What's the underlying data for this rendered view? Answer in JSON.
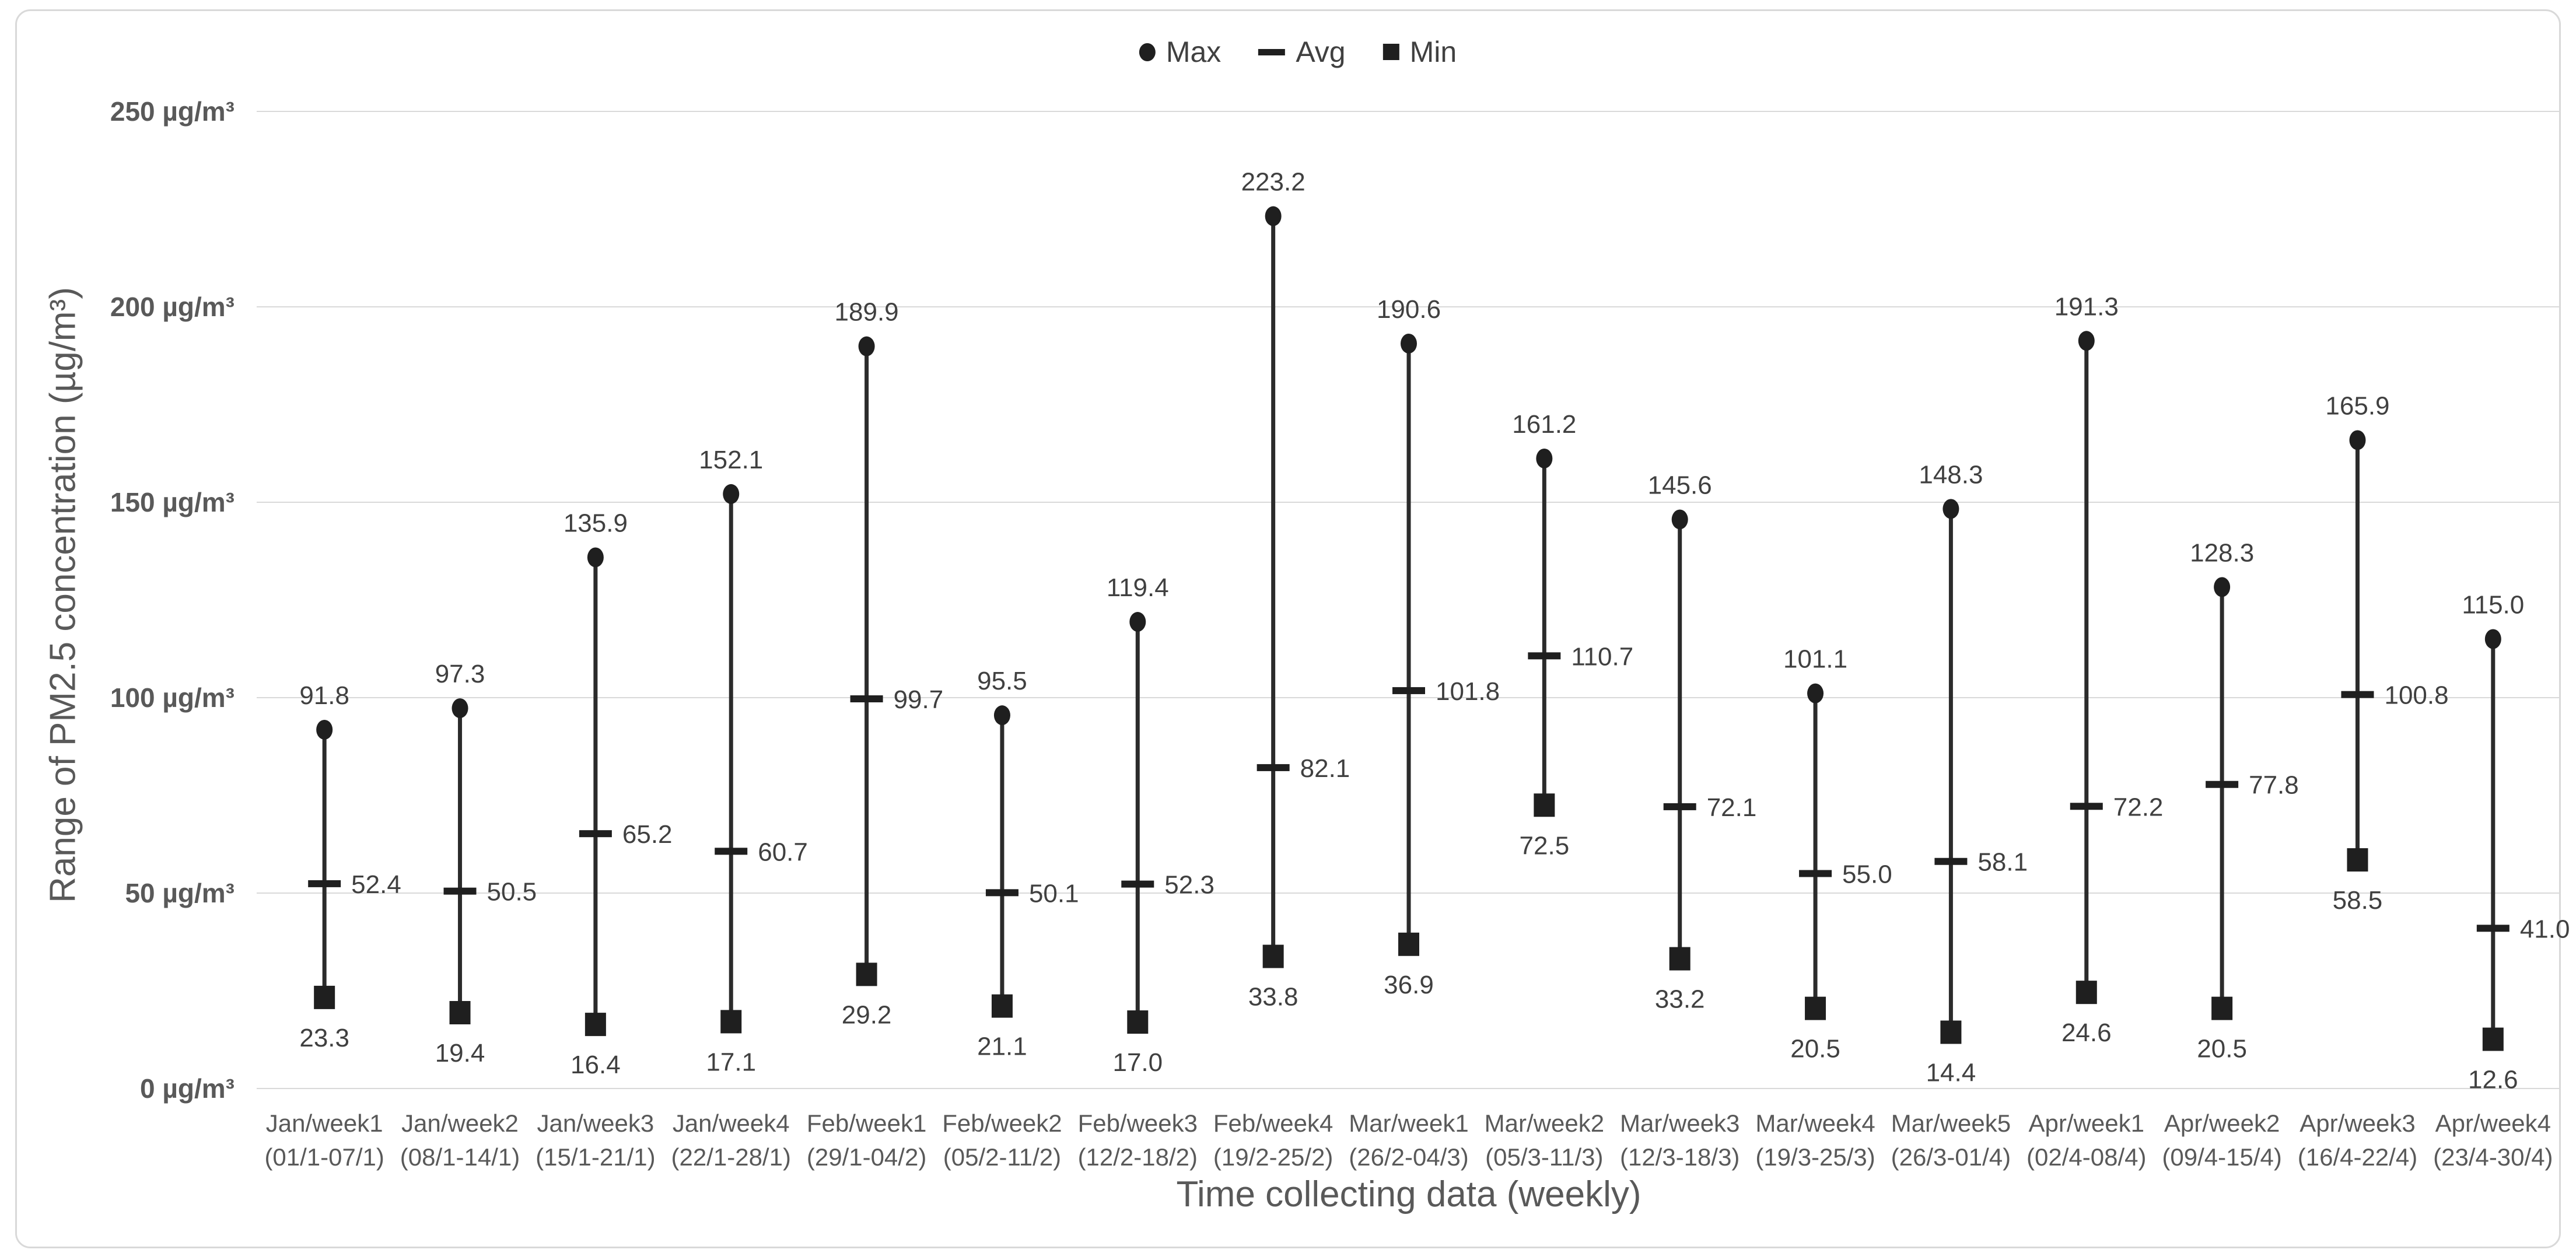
{
  "chart_data": {
    "type": "scatter",
    "variant": "high-low-range",
    "title": "",
    "xlabel": "Time collecting data (weekly)",
    "ylabel": "Range of PM2.5 concentration (µg/m³)",
    "ylim": [
      0,
      250
    ],
    "grid": "horizontal",
    "y_tick_step": 50,
    "y_ticks": [
      "0 µg/m³",
      "50 µg/m³",
      "100 µg/m³",
      "150 µg/m³",
      "200 µg/m³",
      "250 µg/m³"
    ],
    "legend_position": "top-center",
    "categories": [
      {
        "week": "Jan/week1",
        "dates": "(01/1-07/1)"
      },
      {
        "week": "Jan/week2",
        "dates": "(08/1-14/1)"
      },
      {
        "week": "Jan/week3",
        "dates": "(15/1-21/1)"
      },
      {
        "week": "Jan/week4",
        "dates": "(22/1-28/1)"
      },
      {
        "week": "Feb/week1",
        "dates": "(29/1-04/2)"
      },
      {
        "week": "Feb/week2",
        "dates": "(05/2-11/2)"
      },
      {
        "week": "Feb/week3",
        "dates": "(12/2-18/2)"
      },
      {
        "week": "Feb/week4",
        "dates": "(19/2-25/2)"
      },
      {
        "week": "Mar/week1",
        "dates": "(26/2-04/3)"
      },
      {
        "week": "Mar/week2",
        "dates": "(05/3-11/3)"
      },
      {
        "week": "Mar/week3",
        "dates": "(12/3-18/3)"
      },
      {
        "week": "Mar/week4",
        "dates": "(19/3-25/3)"
      },
      {
        "week": "Mar/week5",
        "dates": "(26/3-01/4)"
      },
      {
        "week": "Apr/week1",
        "dates": "(02/4-08/4)"
      },
      {
        "week": "Apr/week2",
        "dates": "(09/4-15/4)"
      },
      {
        "week": "Apr/week3",
        "dates": "(16/4-22/4)"
      },
      {
        "week": "Apr/week4",
        "dates": "(23/4-30/4)"
      }
    ],
    "series": [
      {
        "name": "Max",
        "marker": "circle",
        "values": [
          91.8,
          97.3,
          135.9,
          152.1,
          189.9,
          95.5,
          119.4,
          223.2,
          190.6,
          161.2,
          145.6,
          101.1,
          148.3,
          191.3,
          128.3,
          165.9,
          115.0
        ]
      },
      {
        "name": "Avg",
        "marker": "dash",
        "values": [
          52.4,
          50.5,
          65.2,
          60.7,
          99.7,
          50.1,
          52.3,
          82.1,
          101.8,
          110.7,
          72.1,
          55.0,
          58.1,
          72.2,
          77.8,
          100.8,
          41.0
        ]
      },
      {
        "name": "Min",
        "marker": "square",
        "values": [
          23.3,
          19.4,
          16.4,
          17.1,
          29.2,
          21.1,
          17.0,
          33.8,
          36.9,
          72.5,
          33.2,
          20.5,
          14.4,
          24.6,
          20.5,
          58.5,
          12.6
        ]
      }
    ]
  },
  "legend": {
    "items": [
      {
        "label": "Max"
      },
      {
        "label": "Avg"
      },
      {
        "label": "Min"
      }
    ]
  },
  "axes": {
    "y_title": "Range of PM2.5 concentration (µg/m³)",
    "x_title": "Time collecting data (weekly)"
  },
  "colors": {
    "marker": "#1f1f1f",
    "range_line": "#2b2b2b",
    "gridline": "#d9d9d9",
    "tick_text": "#595959",
    "data_label": "#404040",
    "legend_text": "#404040",
    "frame_border": "#d9d9d9",
    "background": "#ffffff"
  }
}
